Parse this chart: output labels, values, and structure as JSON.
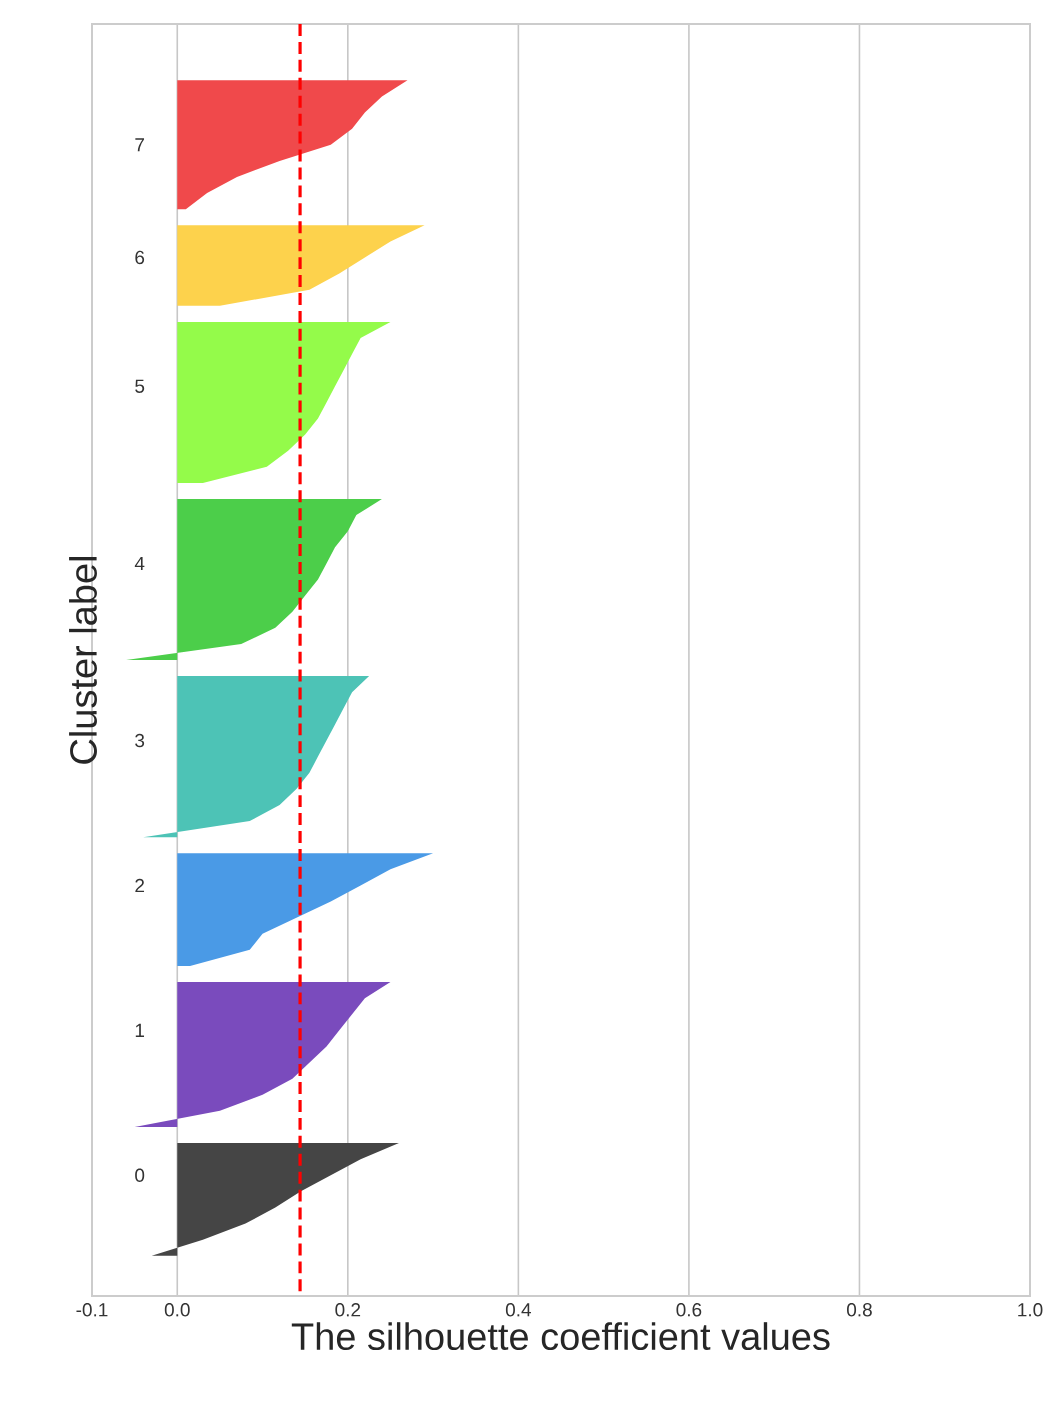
{
  "chart_data": {
    "type": "area",
    "orientation": "horizontal",
    "xlabel": "The silhouette coefficient values",
    "ylabel": "Cluster label",
    "grid": "x",
    "xlim": [
      -0.1,
      1.0
    ],
    "xticks": [
      -0.1,
      {
        "value": 0,
        "label": "0.0"
      },
      0.2,
      0.4,
      0.6,
      0.8,
      {
        "value": 1,
        "label": "1.0"
      }
    ],
    "ref_lines": [
      {
        "axis": "x",
        "value": 0.144,
        "color": "#ff0000",
        "line_style": "dashed"
      }
    ],
    "categories": [
      null,
      null,
      null,
      null,
      null,
      null,
      null,
      "7",
      null,
      null,
      null,
      null,
      null,
      null,
      "6",
      null,
      null,
      null,
      null,
      null,
      null,
      null,
      "5",
      null,
      null,
      null,
      null,
      null,
      null,
      null,
      null,
      null,
      null,
      "4",
      null,
      null,
      null,
      null,
      null,
      null,
      null,
      null,
      null,
      null,
      "3",
      null,
      null,
      null,
      null,
      null,
      null,
      null,
      null,
      "2",
      null,
      null,
      null,
      null,
      null,
      null,
      null,
      null,
      "1",
      null,
      null,
      null,
      null,
      null,
      null,
      null,
      null,
      "0",
      null,
      null,
      null,
      null,
      null,
      null,
      null
    ],
    "series": [
      {
        "color": "#454545",
        "values": [
          null,
          null,
          null,
          null,
          null,
          null,
          null,
          null,
          null,
          null,
          null,
          null,
          null,
          null,
          null,
          null,
          null,
          null,
          null,
          null,
          null,
          null,
          null,
          null,
          null,
          null,
          null,
          null,
          null,
          null,
          null,
          null,
          null,
          null,
          null,
          null,
          null,
          null,
          null,
          null,
          null,
          null,
          null,
          null,
          null,
          null,
          null,
          null,
          null,
          null,
          null,
          null,
          null,
          null,
          null,
          null,
          null,
          null,
          null,
          null,
          null,
          null,
          null,
          null,
          null,
          null,
          null,
          null,
          null,
          0.26,
          0.215,
          0.18,
          0.145,
          0.115,
          0.08,
          0.03,
          -0.03,
          null,
          null
        ]
      },
      {
        "color": "#7a4bbd",
        "values": [
          null,
          null,
          null,
          null,
          null,
          null,
          null,
          null,
          null,
          null,
          null,
          null,
          null,
          null,
          null,
          null,
          null,
          null,
          null,
          null,
          null,
          null,
          null,
          null,
          null,
          null,
          null,
          null,
          null,
          null,
          null,
          null,
          null,
          null,
          null,
          null,
          null,
          null,
          null,
          null,
          null,
          null,
          null,
          null,
          null,
          null,
          null,
          null,
          null,
          null,
          null,
          null,
          null,
          null,
          null,
          null,
          null,
          null,
          null,
          0.25,
          0.22,
          0.205,
          0.19,
          0.175,
          0.155,
          0.135,
          0.1,
          0.05,
          -0.05,
          null,
          null,
          null,
          null,
          null,
          null,
          null,
          null,
          null,
          null
        ]
      },
      {
        "color": "#4a9ae6",
        "values": [
          null,
          null,
          null,
          null,
          null,
          null,
          null,
          null,
          null,
          null,
          null,
          null,
          null,
          null,
          null,
          null,
          null,
          null,
          null,
          null,
          null,
          null,
          null,
          null,
          null,
          null,
          null,
          null,
          null,
          null,
          null,
          null,
          null,
          null,
          null,
          null,
          null,
          null,
          null,
          null,
          null,
          null,
          null,
          null,
          null,
          null,
          null,
          null,
          null,
          null,
          null,
          0.3,
          0.25,
          0.215,
          0.18,
          0.14,
          0.1,
          0.085,
          0.015,
          null,
          null,
          null,
          null,
          null,
          null,
          null,
          null,
          null,
          null,
          null,
          null,
          null,
          null,
          null,
          null,
          null,
          null,
          null,
          null
        ]
      },
      {
        "color": "#4dc3b6",
        "values": [
          null,
          null,
          null,
          null,
          null,
          null,
          null,
          null,
          null,
          null,
          null,
          null,
          null,
          null,
          null,
          null,
          null,
          null,
          null,
          null,
          null,
          null,
          null,
          null,
          null,
          null,
          null,
          null,
          null,
          null,
          null,
          null,
          null,
          null,
          null,
          null,
          null,
          null,
          null,
          null,
          0.225,
          0.205,
          0.195,
          0.185,
          0.175,
          0.165,
          0.155,
          0.14,
          0.12,
          0.085,
          -0.04,
          null,
          null,
          null,
          null,
          null,
          null,
          null,
          null,
          null,
          null,
          null,
          null,
          null,
          null,
          null,
          null,
          null,
          null,
          null,
          null,
          null,
          null,
          null,
          null,
          null,
          null,
          null,
          null
        ]
      },
      {
        "color": "#4cce4a",
        "values": [
          null,
          null,
          null,
          null,
          null,
          null,
          null,
          null,
          null,
          null,
          null,
          null,
          null,
          null,
          null,
          null,
          null,
          null,
          null,
          null,
          null,
          null,
          null,
          null,
          null,
          null,
          null,
          null,
          null,
          0.24,
          0.21,
          0.2,
          0.185,
          0.175,
          0.165,
          0.15,
          0.135,
          0.115,
          0.075,
          -0.06,
          null,
          null,
          null,
          null,
          null,
          null,
          null,
          null,
          null,
          null,
          null,
          null,
          null,
          null,
          null,
          null,
          null,
          null,
          null,
          null,
          null,
          null,
          null,
          null,
          null,
          null,
          null,
          null,
          null,
          null,
          null,
          null,
          null,
          null,
          null,
          null,
          null,
          null,
          null
        ]
      },
      {
        "color": "#94fb4a",
        "values": [
          null,
          null,
          null,
          null,
          null,
          null,
          null,
          null,
          null,
          null,
          null,
          null,
          null,
          null,
          null,
          null,
          null,
          null,
          0.25,
          0.215,
          0.205,
          0.195,
          0.185,
          0.175,
          0.165,
          0.15,
          0.13,
          0.105,
          0.03,
          null,
          null,
          null,
          null,
          null,
          null,
          null,
          null,
          null,
          null,
          null,
          null,
          null,
          null,
          null,
          null,
          null,
          null,
          null,
          null,
          null,
          null,
          null,
          null,
          null,
          null,
          null,
          null,
          null,
          null,
          null,
          null,
          null,
          null,
          null,
          null,
          null,
          null,
          null,
          null,
          null,
          null,
          null,
          null,
          null,
          null,
          null,
          null,
          null,
          null
        ]
      },
      {
        "color": "#fdd24c",
        "values": [
          null,
          null,
          null,
          null,
          null,
          null,
          null,
          null,
          null,
          null,
          null,
          null,
          0.29,
          0.25,
          0.22,
          0.19,
          0.155,
          0.05,
          null,
          null,
          null,
          null,
          null,
          null,
          null,
          null,
          null,
          null,
          null,
          null,
          null,
          null,
          null,
          null,
          null,
          null,
          null,
          null,
          null,
          null,
          null,
          null,
          null,
          null,
          null,
          null,
          null,
          null,
          null,
          null,
          null,
          null,
          null,
          null,
          null,
          null,
          null,
          null,
          null,
          null,
          null,
          null,
          null,
          null,
          null,
          null,
          null,
          null,
          null,
          null,
          null,
          null,
          null,
          null,
          null,
          null,
          null,
          null,
          null
        ]
      },
      {
        "color": "#f0494b",
        "values": [
          null,
          null,
          null,
          0.27,
          0.24,
          0.22,
          0.205,
          0.18,
          0.12,
          0.07,
          0.035,
          0.01,
          null,
          null,
          null,
          null,
          null,
          null,
          null,
          null,
          null,
          null,
          null,
          null,
          null,
          null,
          null,
          null,
          null,
          null,
          null,
          null,
          null,
          null,
          null,
          null,
          null,
          null,
          null,
          null,
          null,
          null,
          null,
          null,
          null,
          null,
          null,
          null,
          null,
          null,
          null,
          null,
          null,
          null,
          null,
          null,
          null,
          null,
          null,
          null,
          null,
          null,
          null,
          null,
          null,
          null,
          null,
          null,
          null,
          null,
          null,
          null,
          null,
          null,
          null,
          null,
          null,
          null,
          null
        ]
      }
    ]
  }
}
